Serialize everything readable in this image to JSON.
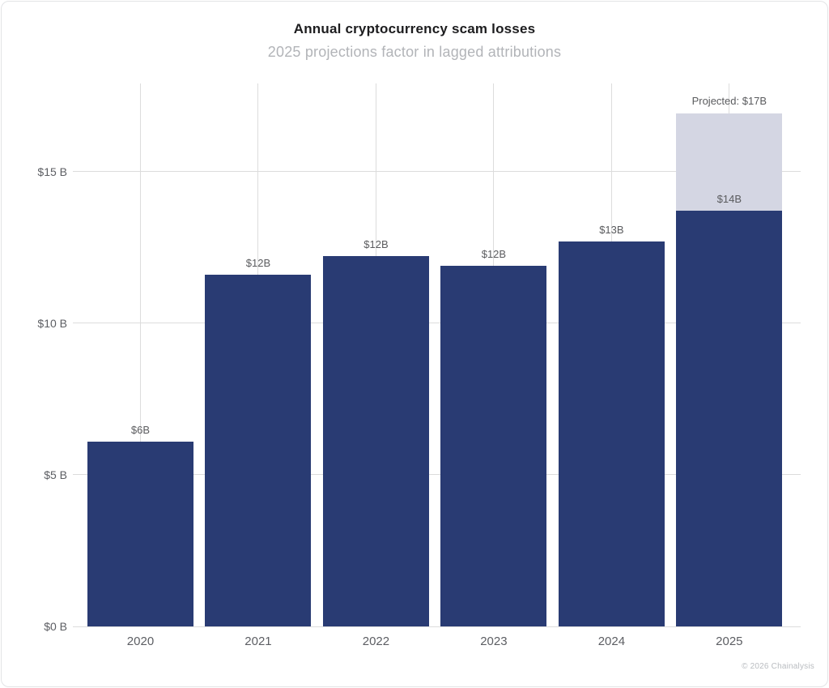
{
  "header": {
    "title": "Annual cryptocurrency scam losses",
    "subtitle": "2025 projections factor in lagged attributions"
  },
  "footer": {
    "credit": "© 2026 Chainalysis"
  },
  "colors": {
    "background": "#ffffff",
    "frame_border": "#e3e4e6",
    "title_text": "#1c1c1e",
    "subtitle_text": "#b2b4b8",
    "gridline": "#dcdcdc",
    "axis_text": "#5c5e63",
    "bar_label_text": "#5a5b5e",
    "bar_fill": "#293b73",
    "projected_fill": "#d4d6e3",
    "footer_text": "#b9bcc0"
  },
  "chart_data": {
    "type": "bar",
    "title": "Annual cryptocurrency scam losses",
    "subtitle": "2025 projections factor in lagged attributions",
    "unit": "USD billions",
    "categories": [
      "2020",
      "2021",
      "2022",
      "2023",
      "2024",
      "2025"
    ],
    "values": [
      6.1,
      11.6,
      12.2,
      11.9,
      12.7,
      13.7
    ],
    "bar_labels": [
      "$6B",
      "$12B",
      "$12B",
      "$12B",
      "$13B",
      "$14B"
    ],
    "projected": {
      "category": "2025",
      "total_value": 16.9,
      "label": "Projected: $17B"
    },
    "y_ticks": [
      {
        "value": 0,
        "label": "$0 B"
      },
      {
        "value": 5,
        "label": "$5 B"
      },
      {
        "value": 10,
        "label": "$10 B"
      },
      {
        "value": 15,
        "label": "$15 B"
      }
    ],
    "ylim": [
      0,
      17.9
    ],
    "grid": true,
    "legend": "none",
    "attribution": "© 2026 Chainalysis"
  }
}
